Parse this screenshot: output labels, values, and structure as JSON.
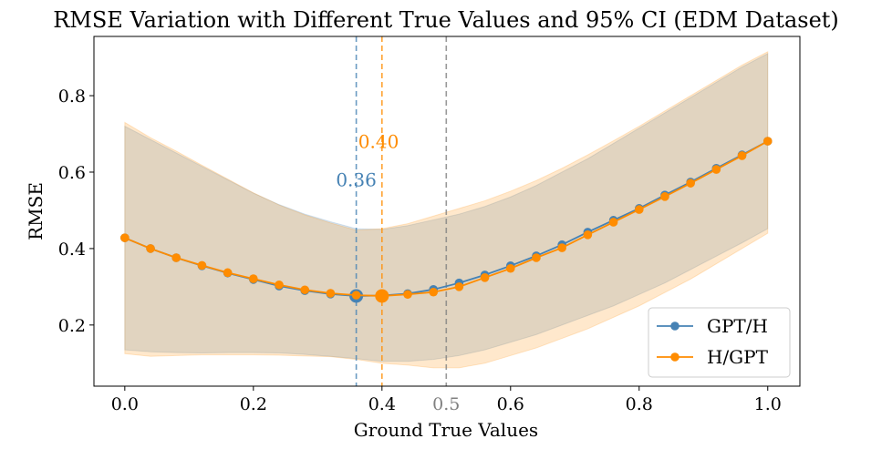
{
  "chart_data": {
    "type": "line",
    "title": "RMSE Variation with Different True Values and 95% CI (EDM Dataset)",
    "xlabel": "Ground True Values",
    "ylabel": "RMSE",
    "xlim": [
      -0.048,
      1.05
    ],
    "ylim": [
      0.04,
      0.955
    ],
    "xticks": [
      "0.0",
      "0.2",
      "0.4",
      "0.6",
      "0.8",
      "1.0"
    ],
    "xtick_values": [
      0,
      0.2,
      0.4,
      0.6,
      0.8,
      1.0
    ],
    "yticks": [
      "0.2",
      "0.4",
      "0.6",
      "0.8"
    ],
    "ytick_values": [
      0.2,
      0.4,
      0.6,
      0.8
    ],
    "grid": false,
    "legend": "bottom-right",
    "x": [
      0,
      0.04,
      0.08,
      0.12,
      0.16,
      0.2,
      0.24,
      0.28,
      0.32,
      0.36,
      0.4,
      0.44,
      0.48,
      0.52,
      0.56,
      0.6,
      0.64,
      0.68,
      0.72,
      0.76,
      0.8,
      0.84,
      0.88,
      0.92,
      0.96,
      1.0
    ],
    "series": [
      {
        "name": "GPT/H",
        "color": "#4682b4",
        "values": [
          0.428,
          0.4,
          0.376,
          0.355,
          0.336,
          0.319,
          0.302,
          0.29,
          0.281,
          0.276,
          0.277,
          0.282,
          0.293,
          0.31,
          0.331,
          0.355,
          0.381,
          0.41,
          0.443,
          0.474,
          0.505,
          0.54,
          0.574,
          0.61,
          0.645,
          0.681
        ],
        "ci_upper": [
          0.72,
          0.685,
          0.65,
          0.615,
          0.58,
          0.545,
          0.515,
          0.49,
          0.47,
          0.452,
          0.45,
          0.46,
          0.475,
          0.49,
          0.51,
          0.535,
          0.565,
          0.6,
          0.635,
          0.675,
          0.715,
          0.755,
          0.795,
          0.835,
          0.875,
          0.91
        ],
        "ci_lower": [
          0.135,
          0.13,
          0.128,
          0.127,
          0.128,
          0.128,
          0.127,
          0.123,
          0.118,
          0.112,
          0.105,
          0.105,
          0.11,
          0.12,
          0.135,
          0.155,
          0.175,
          0.2,
          0.225,
          0.25,
          0.28,
          0.31,
          0.345,
          0.38,
          0.415,
          0.452
        ],
        "optimum": 0.36,
        "optimum_label": "0.36"
      },
      {
        "name": "H/GPT",
        "color": "#ff8c00",
        "values": [
          0.428,
          0.4,
          0.376,
          0.356,
          0.337,
          0.321,
          0.305,
          0.292,
          0.283,
          0.278,
          0.276,
          0.28,
          0.286,
          0.3,
          0.324,
          0.348,
          0.376,
          0.402,
          0.436,
          0.469,
          0.502,
          0.536,
          0.571,
          0.607,
          0.643,
          0.681
        ],
        "ci_upper": [
          0.73,
          0.69,
          0.655,
          0.618,
          0.582,
          0.546,
          0.514,
          0.488,
          0.467,
          0.448,
          0.452,
          0.465,
          0.485,
          0.505,
          0.525,
          0.55,
          0.578,
          0.61,
          0.645,
          0.682,
          0.72,
          0.76,
          0.8,
          0.84,
          0.88,
          0.915
        ],
        "ci_lower": [
          0.125,
          0.118,
          0.12,
          0.122,
          0.122,
          0.122,
          0.121,
          0.119,
          0.117,
          0.11,
          0.1,
          0.095,
          0.088,
          0.088,
          0.1,
          0.12,
          0.14,
          0.165,
          0.19,
          0.22,
          0.25,
          0.285,
          0.32,
          0.36,
          0.4,
          0.44
        ],
        "optimum": 0.4,
        "optimum_label": "0.40"
      }
    ],
    "reference_line": {
      "x": 0.5,
      "label": "0.5",
      "color": "#808080"
    }
  }
}
